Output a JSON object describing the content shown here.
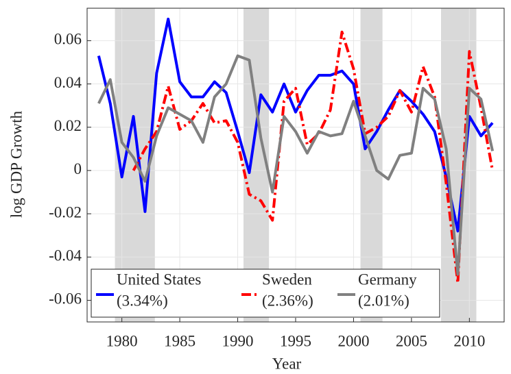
{
  "chart_data": {
    "type": "line",
    "x_label": "Year",
    "y_label": "log GDP Growth",
    "x": [
      1978,
      1979,
      1980,
      1981,
      1982,
      1983,
      1984,
      1985,
      1986,
      1987,
      1988,
      1989,
      1990,
      1991,
      1992,
      1993,
      1994,
      1995,
      1996,
      1997,
      1998,
      1999,
      2000,
      2001,
      2002,
      2003,
      2004,
      2005,
      2006,
      2007,
      2008,
      2009,
      2010,
      2011,
      2012
    ],
    "series": [
      {
        "name": "United States",
        "note": "(3.34%)",
        "color": "#0000ff",
        "style": "solid",
        "values": [
          0.053,
          0.031,
          -0.003,
          0.025,
          -0.019,
          0.045,
          0.07,
          0.041,
          0.034,
          0.034,
          0.041,
          0.036,
          0.018,
          -0.001,
          0.035,
          0.027,
          0.04,
          0.027,
          0.037,
          0.044,
          0.044,
          0.046,
          0.04,
          0.01,
          0.018,
          0.028,
          0.037,
          0.032,
          0.026,
          0.018,
          -0.003,
          -0.028,
          0.025,
          0.016,
          0.022
        ]
      },
      {
        "name": "Sweden",
        "note": "(2.36%)",
        "color": "#ff0000",
        "style": "dash-dot",
        "values": [
          null,
          null,
          null,
          0.0,
          0.01,
          0.018,
          0.039,
          0.019,
          0.023,
          0.031,
          0.022,
          0.023,
          0.013,
          -0.011,
          -0.014,
          -0.023,
          0.032,
          0.038,
          0.012,
          0.017,
          0.028,
          0.064,
          0.047,
          0.017,
          0.02,
          0.025,
          0.037,
          0.027,
          0.048,
          0.034,
          -0.006,
          -0.052,
          0.055,
          0.029,
          0.0
        ]
      },
      {
        "name": "Germany",
        "note": "(2.01%)",
        "color": "#808080",
        "style": "solid",
        "values": [
          0.031,
          0.042,
          0.013,
          0.006,
          -0.005,
          0.016,
          0.029,
          0.026,
          0.023,
          0.013,
          0.034,
          0.04,
          0.053,
          0.051,
          0.015,
          -0.01,
          0.025,
          0.018,
          0.008,
          0.018,
          0.016,
          0.017,
          0.032,
          0.016,
          0.0,
          -0.004,
          0.007,
          0.008,
          0.038,
          0.033,
          0.01,
          -0.048,
          0.038,
          0.033,
          0.009
        ]
      }
    ],
    "shaded_x_ranges": [
      [
        1979.4,
        1982.85
      ],
      [
        1990.5,
        1992.7
      ],
      [
        2000.6,
        2002.5
      ],
      [
        2007.55,
        2010.6
      ]
    ],
    "shade_color": "#d9d9d9",
    "xlim": [
      1977,
      2013
    ],
    "ylim": [
      -0.07,
      0.075
    ],
    "xticks": [
      1980,
      1985,
      1990,
      1995,
      2000,
      2005,
      2010
    ],
    "yticks": [
      -0.06,
      -0.04,
      -0.02,
      0,
      0.02,
      0.04,
      0.06
    ],
    "grid": true,
    "legend": "lower-left"
  }
}
